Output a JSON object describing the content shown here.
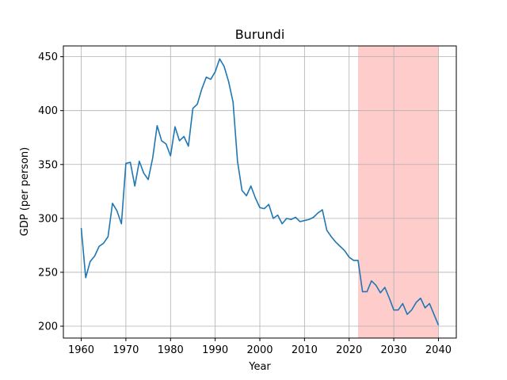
{
  "chart_data": {
    "type": "line",
    "title": "Burundi",
    "xlabel": "Year",
    "ylabel": "GDP (per person)",
    "xlim": [
      1956,
      2044
    ],
    "ylim": [
      189,
      460
    ],
    "xticks": [
      1960,
      1970,
      1980,
      1990,
      2000,
      2010,
      2020,
      2030,
      2040
    ],
    "yticks": [
      200,
      250,
      300,
      350,
      400,
      450
    ],
    "grid": true,
    "line_color": "#1f77b4",
    "shaded_region": {
      "x_start": 2022,
      "x_end": 2040,
      "color": "#ffcccc"
    },
    "series": [
      {
        "x": [
          1960,
          1961,
          1962,
          1963,
          1964,
          1965,
          1966,
          1967,
          1968,
          1969,
          1970,
          1971,
          1972,
          1973,
          1974,
          1975,
          1976,
          1977,
          1978,
          1979,
          1980,
          1981,
          1982,
          1983,
          1984,
          1985,
          1986,
          1987,
          1988,
          1989,
          1990,
          1991,
          1992,
          1993,
          1994,
          1995,
          1996,
          1997,
          1998,
          1999,
          2000,
          2001,
          2002,
          2003,
          2004,
          2005,
          2006,
          2007,
          2008,
          2009,
          2010,
          2011,
          2012,
          2013,
          2014,
          2015,
          2016,
          2017,
          2018,
          2019,
          2020,
          2021,
          2022,
          2023,
          2024,
          2025,
          2026,
          2027,
          2028,
          2029,
          2030,
          2031,
          2032,
          2033,
          2034,
          2035,
          2036,
          2037,
          2038,
          2039,
          2040
        ],
        "values": [
          291,
          245,
          260,
          265,
          274,
          277,
          283,
          314,
          307,
          295,
          351,
          352,
          330,
          353,
          342,
          336,
          356,
          386,
          372,
          369,
          358,
          385,
          372,
          376,
          367,
          402,
          406,
          420,
          431,
          429,
          436,
          448,
          441,
          427,
          408,
          353,
          326,
          321,
          330,
          319,
          310,
          309,
          313,
          300,
          303,
          295,
          300,
          299,
          301,
          297,
          298,
          299,
          301,
          305,
          308,
          289,
          283,
          278,
          274,
          270,
          264,
          261,
          261,
          232,
          232,
          242,
          238,
          231,
          236,
          226,
          215,
          215,
          221,
          211,
          215,
          222,
          226,
          217,
          221,
          211,
          201
        ]
      }
    ]
  }
}
